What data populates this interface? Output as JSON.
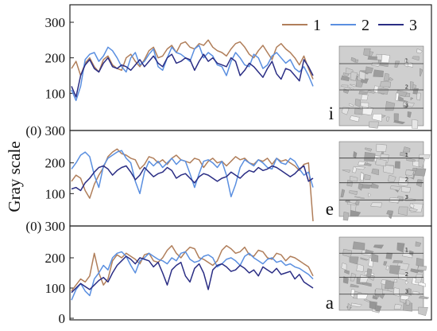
{
  "chart_data": {
    "type": "line",
    "ylabel": "Gray scale",
    "legend": {
      "placement": "top-right",
      "entries": [
        {
          "label": "1",
          "color": "#b07e5a"
        },
        {
          "label": "2",
          "color": "#5a8fe0"
        },
        {
          "label": "3",
          "color": "#2a2d84"
        }
      ]
    },
    "panels": [
      {
        "letter": "i",
        "ylim": [
          0,
          300
        ],
        "yticks": [
          {
            "value": 300,
            "label": "300"
          },
          {
            "value": 200,
            "label": "200"
          },
          {
            "value": 100,
            "label": "100"
          }
        ],
        "baseline_label": "(0) 300",
        "inset_lines": [
          "1",
          "2",
          "3"
        ],
        "series": [
          {
            "name": "1",
            "values": [
              170,
              190,
              150,
              185,
              200,
              175,
              160,
              195,
              205,
              180,
              170,
              165,
              200,
              210,
              190,
              175,
              195,
              220,
              230,
              200,
              205,
              225,
              235,
              215,
              240,
              245,
              230,
              225,
              240,
              235,
              250,
              230,
              220,
              215,
              205,
              225,
              240,
              245,
              230,
              210,
              200,
              220,
              235,
              215,
              195,
              230,
              240,
              225,
              215,
              200,
              180,
              205,
              170,
              140
            ]
          },
          {
            "name": "2",
            "values": [
              110,
              80,
              120,
              195,
              210,
              215,
              190,
              205,
              230,
              220,
              200,
              175,
              160,
              200,
              215,
              180,
              190,
              210,
              225,
              175,
              165,
              200,
              230,
              215,
              210,
              200,
              190,
              225,
              235,
              200,
              215,
              205,
              180,
              175,
              150,
              190,
              215,
              200,
              180,
              175,
              210,
              200,
              170,
              180,
              205,
              215,
              200,
              185,
              195,
              170,
              160,
              175,
              150,
              120
            ]
          },
          {
            "name": "3",
            "values": [
              120,
              90,
              150,
              180,
              195,
              170,
              160,
              185,
              200,
              175,
              170,
              180,
              175,
              165,
              180,
              195,
              175,
              190,
              205,
              185,
              175,
              200,
              210,
              185,
              190,
              200,
              195,
              165,
              190,
              210,
              190,
              200,
              185,
              180,
              175,
              200,
              190,
              150,
              165,
              185,
              175,
              160,
              145,
              170,
              190,
              155,
              140,
              170,
              165,
              150,
              135,
              195,
              175,
              150
            ]
          }
        ]
      },
      {
        "letter": "e",
        "ylim": [
          0,
          300
        ],
        "yticks": [
          {
            "value": 200,
            "label": "200"
          },
          {
            "value": 100,
            "label": "100"
          }
        ],
        "baseline_label": "(0) 300",
        "inset_lines": [
          "1",
          "2",
          "3"
        ],
        "series": [
          {
            "name": "1",
            "values": [
              140,
              160,
              150,
              110,
              85,
              130,
              160,
              185,
              220,
              235,
              245,
              230,
              225,
              215,
              210,
              180,
              195,
              220,
              215,
              200,
              210,
              195,
              215,
              225,
              210,
              205,
              200,
              215,
              210,
              185,
              205,
              215,
              200,
              205,
              190,
              205,
              220,
              210,
              215,
              200,
              195,
              210,
              205,
              215,
              195,
              215,
              205,
              210,
              200,
              190,
              175,
              195,
              200,
              10
            ]
          },
          {
            "name": "2",
            "values": [
              180,
              200,
              225,
              235,
              220,
              160,
              120,
              190,
              215,
              225,
              235,
              240,
              215,
              200,
              140,
              100,
              170,
              205,
              190,
              205,
              185,
              200,
              215,
              195,
              210,
              205,
              165,
              120,
              165,
              205,
              210,
              200,
              185,
              205,
              160,
              90,
              130,
              185,
              210,
              200,
              190,
              210,
              200,
              185,
              180,
              215,
              200,
              195,
              215,
              205,
              180,
              160,
              170,
              120
            ]
          },
          {
            "name": "3",
            "values": [
              115,
              120,
              110,
              135,
              150,
              170,
              185,
              190,
              180,
              160,
              175,
              185,
              190,
              170,
              145,
              160,
              185,
              170,
              155,
              165,
              170,
              185,
              175,
              150,
              160,
              165,
              150,
              135,
              155,
              165,
              160,
              150,
              140,
              150,
              155,
              170,
              160,
              150,
              165,
              175,
              170,
              185,
              175,
              180,
              190,
              185,
              175,
              165,
              155,
              165,
              180,
              190,
              140,
              150
            ]
          }
        ]
      },
      {
        "letter": "a",
        "ylim": [
          0,
          300
        ],
        "yticks": [
          {
            "value": 200,
            "label": "200"
          },
          {
            "value": 100,
            "label": "100"
          },
          {
            "value": 0,
            "label": "0"
          }
        ],
        "baseline_label": "",
        "inset_lines": [
          "1",
          "2",
          "3"
        ],
        "series": [
          {
            "name": "1",
            "values": [
              90,
              110,
              130,
              120,
              140,
              215,
              150,
              110,
              130,
              190,
              210,
              200,
              215,
              205,
              195,
              180,
              210,
              215,
              190,
              185,
              200,
              225,
              240,
              215,
              200,
              220,
              235,
              230,
              200,
              195,
              185,
              175,
              190,
              225,
              240,
              230,
              215,
              220,
              235,
              210,
              205,
              225,
              220,
              200,
              195,
              215,
              210,
              190,
              205,
              200,
              190,
              180,
              170,
              140
            ]
          },
          {
            "name": "2",
            "values": [
              60,
              95,
              115,
              90,
              75,
              130,
              150,
              175,
              160,
              200,
              215,
              220,
              205,
              175,
              150,
              190,
              200,
              215,
              205,
              195,
              190,
              180,
              200,
              190,
              215,
              220,
              195,
              185,
              190,
              205,
              210,
              200,
              170,
              180,
              195,
              200,
              190,
              175,
              205,
              215,
              200,
              190,
              180,
              195,
              200,
              185,
              190,
              175,
              180,
              170,
              165,
              155,
              145,
              130
            ]
          },
          {
            "name": "3",
            "values": [
              85,
              100,
              115,
              105,
              95,
              110,
              125,
              135,
              120,
              150,
              175,
              190,
              205,
              195,
              180,
              200,
              195,
              190,
              170,
              185,
              150,
              110,
              160,
              175,
              185,
              140,
              120,
              165,
              180,
              150,
              95,
              160,
              175,
              180,
              170,
              155,
              160,
              175,
              165,
              150,
              160,
              140,
              170,
              160,
              150,
              165,
              145,
              150,
              155,
              130,
              145,
              120,
              110,
              100
            ]
          }
        ]
      }
    ]
  }
}
